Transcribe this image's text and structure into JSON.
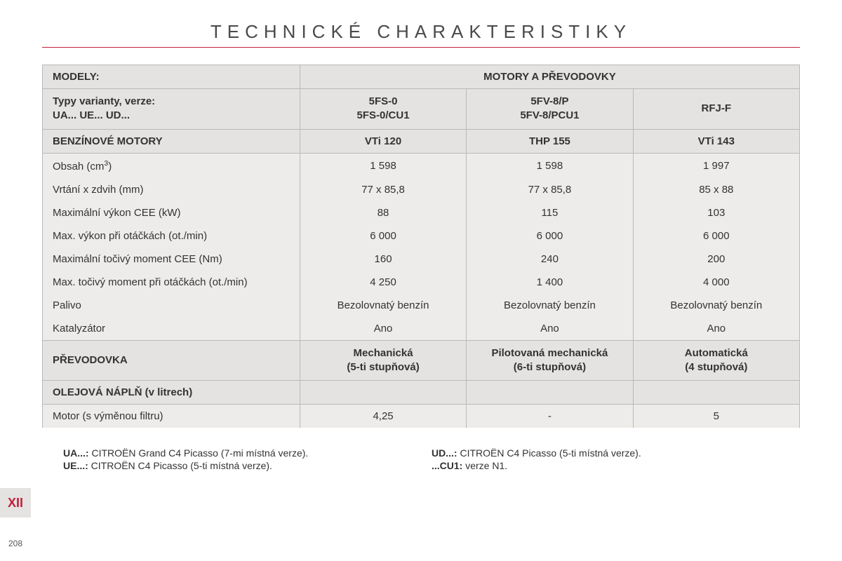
{
  "title": "TECHNICKÉ CHARAKTERISTIKY",
  "chapter": "XII",
  "pageNumber": "208",
  "colors": {
    "accent_red": "#c41e3a",
    "header_bg": "#e4e3e1",
    "body_bg": "#edecea",
    "border": "#b9b9b9",
    "text": "#333333"
  },
  "table": {
    "header": {
      "models_label": "MODELY:",
      "engines_label": "MOTORY A PŘEVODOVKY",
      "variants_label_l1": "Typy varianty, verze:",
      "variants_label_l2": "UA... UE... UD...",
      "variant_cols": [
        {
          "l1": "5FS-0",
          "l2": "5FS-0/CU1"
        },
        {
          "l1": "5FV-8/P",
          "l2": "5FV-8/PCU1"
        },
        {
          "l1": "RFJ-F",
          "l2": ""
        }
      ]
    },
    "engines_section": {
      "label": "BENZÍNOVÉ MOTORY",
      "col_values": [
        "VTi 120",
        "THP 155",
        "VTi 143"
      ]
    },
    "engine_rows": [
      {
        "label": "Obsah (cm³)",
        "values": [
          "1 598",
          "1 598",
          "1 997"
        ]
      },
      {
        "label": "Vrtání x zdvih (mm)",
        "values": [
          "77 x 85,8",
          "77 x 85,8",
          "85 x 88"
        ]
      },
      {
        "label": "Maximální výkon CEE (kW)",
        "values": [
          "88",
          "115",
          "103"
        ]
      },
      {
        "label": "Max. výkon při otáčkách (ot./min)",
        "values": [
          "6 000",
          "6 000",
          "6 000"
        ]
      },
      {
        "label": "Maximální točivý moment CEE (Nm)",
        "values": [
          "160",
          "240",
          "200"
        ]
      },
      {
        "label": "Max. točivý moment při otáčkách (ot./min)",
        "values": [
          "4 250",
          "1 400",
          "4 000"
        ]
      },
      {
        "label": "Palivo",
        "values": [
          "Bezolovnatý benzín",
          "Bezolovnatý benzín",
          "Bezolovnatý benzín"
        ]
      },
      {
        "label": "Katalyzátor",
        "values": [
          "Ano",
          "Ano",
          "Ano"
        ]
      }
    ],
    "gearbox_section": {
      "label": "PŘEVODOVKA",
      "col_values": [
        {
          "l1": "Mechanická",
          "l2": "(5-ti stupňová)"
        },
        {
          "l1": "Pilotovaná mechanická",
          "l2": "(6-ti stupňová)"
        },
        {
          "l1": "Automatická",
          "l2": "(4 stupňová)"
        }
      ]
    },
    "oil_section": {
      "label": "OLEJOVÁ NÁPLŇ (v litrech)"
    },
    "oil_rows": [
      {
        "label": "Motor (s výměnou filtru)",
        "values": [
          "4,25",
          "-",
          "5"
        ]
      }
    ]
  },
  "footnotes": {
    "left": [
      {
        "key": "UA...:",
        "text": " CITROËN Grand C4 Picasso (7-mi místná verze)."
      },
      {
        "key": "UE...:",
        "text": " CITROËN C4 Picasso (5-ti místná verze)."
      }
    ],
    "right": [
      {
        "key": "UD...:",
        "text": " CITROËN C4 Picasso (5-ti místná verze)."
      },
      {
        "key": "...CU1:",
        "text": " verze N1."
      }
    ]
  }
}
